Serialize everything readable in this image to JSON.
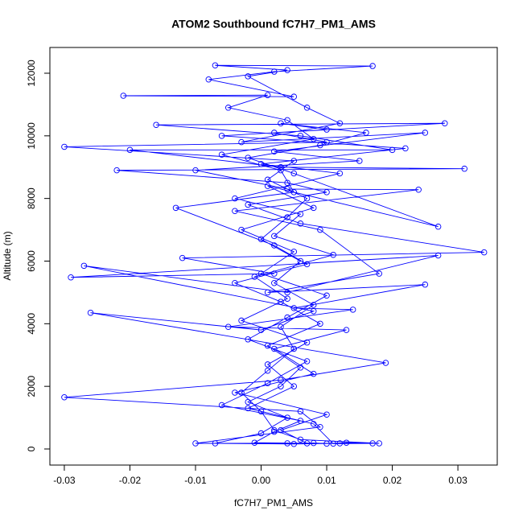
{
  "chart_data": {
    "type": "scatter",
    "title": "ATOM2 Southbound fC7H7_PM1_AMS",
    "x_label": "fC7H7_PM1_AMS",
    "y_label": "Altitude (m)",
    "color": "#0000ff",
    "connect": true,
    "grid": false,
    "xlim": [
      -0.0322,
      0.036
    ],
    "ylim": [
      -514,
      12822
    ],
    "xticks": [
      -0.03,
      -0.02,
      -0.01,
      {
        "value": 0,
        "label": "0.00"
      },
      0.01,
      0.02,
      0.03
    ],
    "yticks": [
      0,
      2000,
      4000,
      6000,
      8000,
      10000,
      12000
    ],
    "x": [
      0.004,
      0.008,
      0.01,
      0.013,
      0.018,
      0.006,
      0.002,
      0.0,
      -0.003,
      0.001,
      0.005,
      0.003,
      0.008,
      0.002,
      0.006,
      0.0,
      0.004,
      0.007,
      0.001,
      0.005,
      -0.03,
      0.01,
      0.002,
      0.028,
      -0.016,
      0.006,
      0.02,
      -0.02,
      0.003,
      0.031,
      -0.022,
      0.004,
      0.01,
      -0.002,
      0.006,
      0.034,
      -0.012,
      0.002,
      -0.029,
      0.027,
      0.004,
      -0.027,
      0.008,
      0.0,
      -0.026,
      0.019,
      0.003,
      -0.03,
      0.006,
      0.009,
      -0.01,
      0.012,
      0.005,
      -0.007,
      0.0,
      0.004,
      -0.002,
      0.003,
      0.006,
      0.001,
      0.009,
      0.003,
      -0.004,
      0.007,
      0.002,
      -0.013,
      0.005,
      0.003,
      -0.006,
      0.008,
      0.004,
      -0.005,
      0.001,
      -0.021,
      0.005,
      -0.008,
      0.002,
      0.017,
      -0.007,
      0.004,
      -0.002,
      0.007,
      0.012,
      -0.003,
      0.025,
      0.002,
      0.015,
      -0.01,
      0.004,
      0.024,
      -0.004,
      0.009,
      0.018,
      0.001,
      0.025,
      0.005,
      0.014,
      -0.005,
      0.013,
      0.002,
      0.008,
      -0.004,
      0.01,
      0.003,
      0.007,
      -0.001,
      0.002,
      0.006,
      -0.006,
      0.001,
      0.007,
      -0.002,
      0.004,
      0.01,
      0.0,
      0.005,
      -0.003,
      0.008,
      0.001,
      0.027,
      0.005,
      -0.002,
      0.009,
      0.016,
      0.003,
      0.01,
      -0.006,
      0.022,
      0.0,
      0.012,
      -0.004,
      0.006,
      0.002,
      0.011,
      -0.001,
      0.004,
      -0.003,
      0.007,
      0.001,
      0.005,
      -0.002,
      0.008,
      0.011,
      0.017
    ],
    "y": [
      180,
      190,
      170,
      200,
      180,
      300,
      600,
      1200,
      1800,
      2500,
      3200,
      3900,
      4600,
      5300,
      6000,
      6700,
      7400,
      8000,
      8600,
      9200,
      9650,
      9800,
      10100,
      10400,
      10350,
      10000,
      9550,
      9550,
      9000,
      8950,
      8900,
      8500,
      8200,
      7800,
      7200,
      6280,
      6100,
      5600,
      5480,
      6180,
      5000,
      5850,
      4400,
      3800,
      4350,
      2750,
      2200,
      1650,
      1200,
      700,
      180,
      180,
      160,
      180,
      500,
      1000,
      1500,
      2000,
      2600,
      3300,
      4000,
      4700,
      5300,
      5900,
      6500,
      7700,
      8200,
      8900,
      9400,
      9900,
      10500,
      10900,
      11300,
      11280,
      11250,
      11800,
      12050,
      12230,
      12250,
      12100,
      11900,
      10900,
      10400,
      9800,
      10100,
      9500,
      9200,
      8900,
      8300,
      8280,
      7600,
      7000,
      5600,
      5000,
      5250,
      4500,
      4450,
      3900,
      3800,
      3200,
      2400,
      1800,
      1100,
      600,
      180,
      200,
      550,
      900,
      1400,
      2100,
      2800,
      3500,
      4200,
      4900,
      5600,
      6300,
      7000,
      7700,
      8400,
      7100,
      8800,
      9300,
      9700,
      10100,
      10400,
      10200,
      10000,
      9600,
      9100,
      8800,
      8000,
      7500,
      6800,
      6200,
      5500,
      4800,
      4100,
      3400,
      2700,
      2000,
      1300,
      800,
      170,
      180
    ]
  }
}
